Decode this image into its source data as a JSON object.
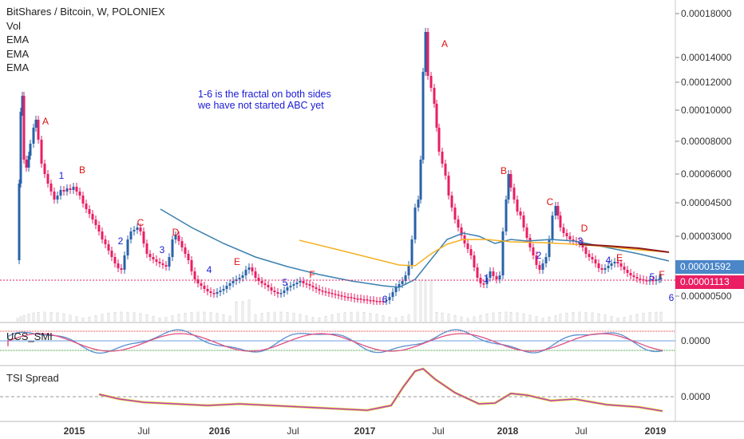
{
  "chart_data": {
    "type": "candlestick",
    "title": "BitShares / Bitcoin, W, POLONIEX",
    "indicators": [
      "Vol",
      "EMA",
      "EMA",
      "EMA"
    ],
    "annotation": [
      "1-6 is the fractal on both sides",
      "we have not started ABC yet"
    ],
    "y_scale": "log",
    "y_ticks": [
      "0.00018000",
      "0.00014000",
      "0.00012000",
      "0.00010000",
      "0.00008000",
      "0.00006000",
      "0.00004500",
      "0.00003000",
      "0.00000500"
    ],
    "x_ticks": [
      "2015",
      "Jul",
      "2016",
      "Jul",
      "2017",
      "Jul",
      "2018",
      "Jul",
      "2019"
    ],
    "price_markers": [
      {
        "label": "0.00001592",
        "color": "#4a86c8"
      },
      {
        "label": "0.00001113",
        "color": "#e91e63"
      }
    ],
    "wave_labels": [
      {
        "text": "A",
        "color": "#e01010"
      },
      {
        "text": "1",
        "color": "#1a1ad6"
      },
      {
        "text": "B",
        "color": "#e01010"
      },
      {
        "text": "2",
        "color": "#1a1ad6"
      },
      {
        "text": "C",
        "color": "#e01010"
      },
      {
        "text": "3",
        "color": "#1a1ad6"
      },
      {
        "text": "D",
        "color": "#e01010"
      },
      {
        "text": "4",
        "color": "#1a1ad6"
      },
      {
        "text": "E",
        "color": "#e01010"
      },
      {
        "text": "5",
        "color": "#1a1ad6"
      },
      {
        "text": "F",
        "color": "#e01010"
      },
      {
        "text": "6",
        "color": "#1a1ad6"
      },
      {
        "text": "A",
        "color": "#e01010"
      },
      {
        "text": "1",
        "color": "#1a1ad6"
      },
      {
        "text": "B",
        "color": "#e01010"
      },
      {
        "text": "2",
        "color": "#1a1ad6"
      },
      {
        "text": "C",
        "color": "#e01010"
      },
      {
        "text": "3",
        "color": "#1a1ad6"
      },
      {
        "text": "D",
        "color": "#e01010"
      },
      {
        "text": "4",
        "color": "#1a1ad6"
      },
      {
        "text": "E",
        "color": "#e01010"
      },
      {
        "text": "5",
        "color": "#1a1ad6"
      },
      {
        "text": "F",
        "color": "#e01010"
      },
      {
        "text": "6",
        "color": "#1a1ad6"
      }
    ],
    "panes": [
      {
        "name": "UCS_SMI",
        "tick": "0.0000"
      },
      {
        "name": "TSI Spread",
        "tick": "0.0000"
      }
    ],
    "colors": {
      "up": "#2962a8",
      "down": "#e91e63",
      "ema_fast": "#3a7fb0",
      "ema_mid": "#f5b120",
      "ema_slow": "#8b1a1a"
    }
  }
}
